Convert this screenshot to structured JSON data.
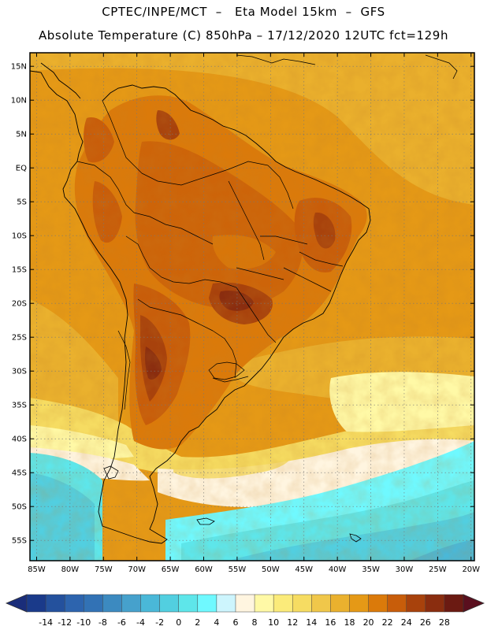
{
  "header": {
    "line1": "CPTEC/INPE/MCT  –   Eta Model 15km  –  GFS",
    "line2": "Absolute Temperature (C) 850hPa – 17/12/2020 12UTC fct=129h"
  },
  "map": {
    "lat_labels": [
      "15N",
      "10N",
      "5N",
      "EQ",
      "5S",
      "10S",
      "15S",
      "20S",
      "25S",
      "30S",
      "35S",
      "40S",
      "45S",
      "50S",
      "55S"
    ],
    "lat_values": [
      15,
      10,
      5,
      0,
      -5,
      -10,
      -15,
      -20,
      -25,
      -30,
      -35,
      -40,
      -45,
      -50,
      -55
    ],
    "lon_labels": [
      "85W",
      "80W",
      "75W",
      "70W",
      "65W",
      "60W",
      "55W",
      "50W",
      "45W",
      "40W",
      "35W",
      "30W",
      "25W",
      "20W"
    ],
    "lon_values": [
      -85,
      -80,
      -75,
      -70,
      -65,
      -60,
      -55,
      -50,
      -45,
      -40,
      -35,
      -30,
      -25,
      -20
    ],
    "lon_range": [
      -86,
      -19.5
    ],
    "lat_range": [
      -58,
      17
    ]
  },
  "colorbar": {
    "labels": [
      "-14",
      "-12",
      "-10",
      "-8",
      "-6",
      "-4",
      "-2",
      "0",
      "2",
      "4",
      "6",
      "8",
      "10",
      "12",
      "14",
      "16",
      "18",
      "20",
      "22",
      "24",
      "26",
      "28"
    ],
    "colors": [
      "#1a3a8a",
      "#24519d",
      "#2d64ae",
      "#3272b5",
      "#3c8ac0",
      "#46a1cc",
      "#4ab8d8",
      "#52cfe0",
      "#5ee6ea",
      "#6ff9ff",
      "#cdf5fd",
      "#fff5e0",
      "#fff9a6",
      "#fbeb7a",
      "#f6dc62",
      "#f0c74a",
      "#eab12e",
      "#e59916",
      "#db7a0a",
      "#c85d0a",
      "#a8420c",
      "#8a2d0f",
      "#6b1a12"
    ],
    "low_arrow_color": "#1a2d7a",
    "high_arrow_color": "#5a0f1e"
  }
}
